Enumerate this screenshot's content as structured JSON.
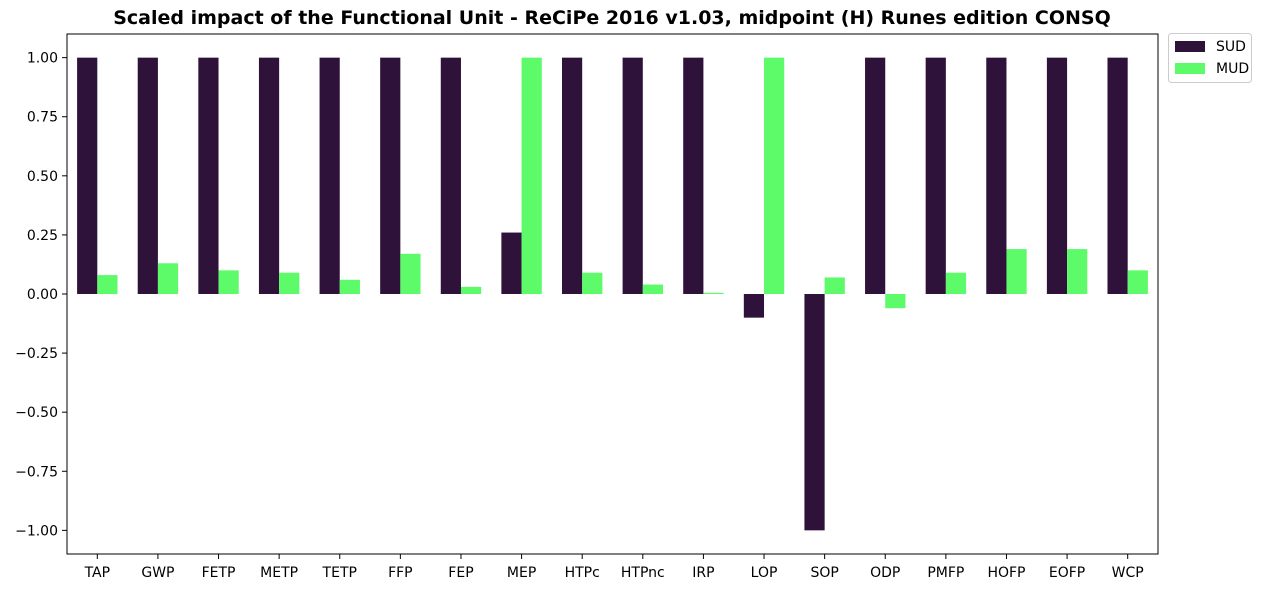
{
  "chart_data": {
    "type": "bar",
    "title": "Scaled impact of the Functional Unit - ReCiPe 2016 v1.03, midpoint (H) Runes edition CONSQ",
    "xlabel": "",
    "ylabel": "",
    "categories": [
      "TAP",
      "GWP",
      "FETP",
      "METP",
      "TETP",
      "FFP",
      "FEP",
      "MEP",
      "HTPc",
      "HTPnc",
      "IRP",
      "LOP",
      "SOP",
      "ODP",
      "PMFP",
      "HOFP",
      "EOFP",
      "WCP"
    ],
    "series": [
      {
        "name": "SUD",
        "color": "#2e1239",
        "values": [
          1.0,
          1.0,
          1.0,
          1.0,
          1.0,
          1.0,
          1.0,
          0.26,
          1.0,
          1.0,
          1.0,
          -0.1,
          -1.0,
          1.0,
          1.0,
          1.0,
          1.0,
          1.0
        ]
      },
      {
        "name": "MUD",
        "color": "#5dfa6a",
        "values": [
          0.08,
          0.13,
          0.1,
          0.09,
          0.06,
          0.17,
          0.03,
          1.0,
          0.09,
          0.04,
          0.005,
          1.0,
          0.07,
          -0.06,
          0.09,
          0.19,
          0.19,
          0.1
        ]
      }
    ],
    "ylim": [
      -1.1,
      1.1
    ],
    "yticks": [
      -1.0,
      -0.75,
      -0.5,
      -0.25,
      0.0,
      0.25,
      0.5,
      0.75,
      1.0
    ],
    "ytick_labels": [
      "−1.00",
      "−0.75",
      "−0.50",
      "−0.25",
      "0.00",
      "0.25",
      "0.50",
      "0.75",
      "1.00"
    ],
    "grid": false,
    "legend_position": "outside-top-right"
  }
}
